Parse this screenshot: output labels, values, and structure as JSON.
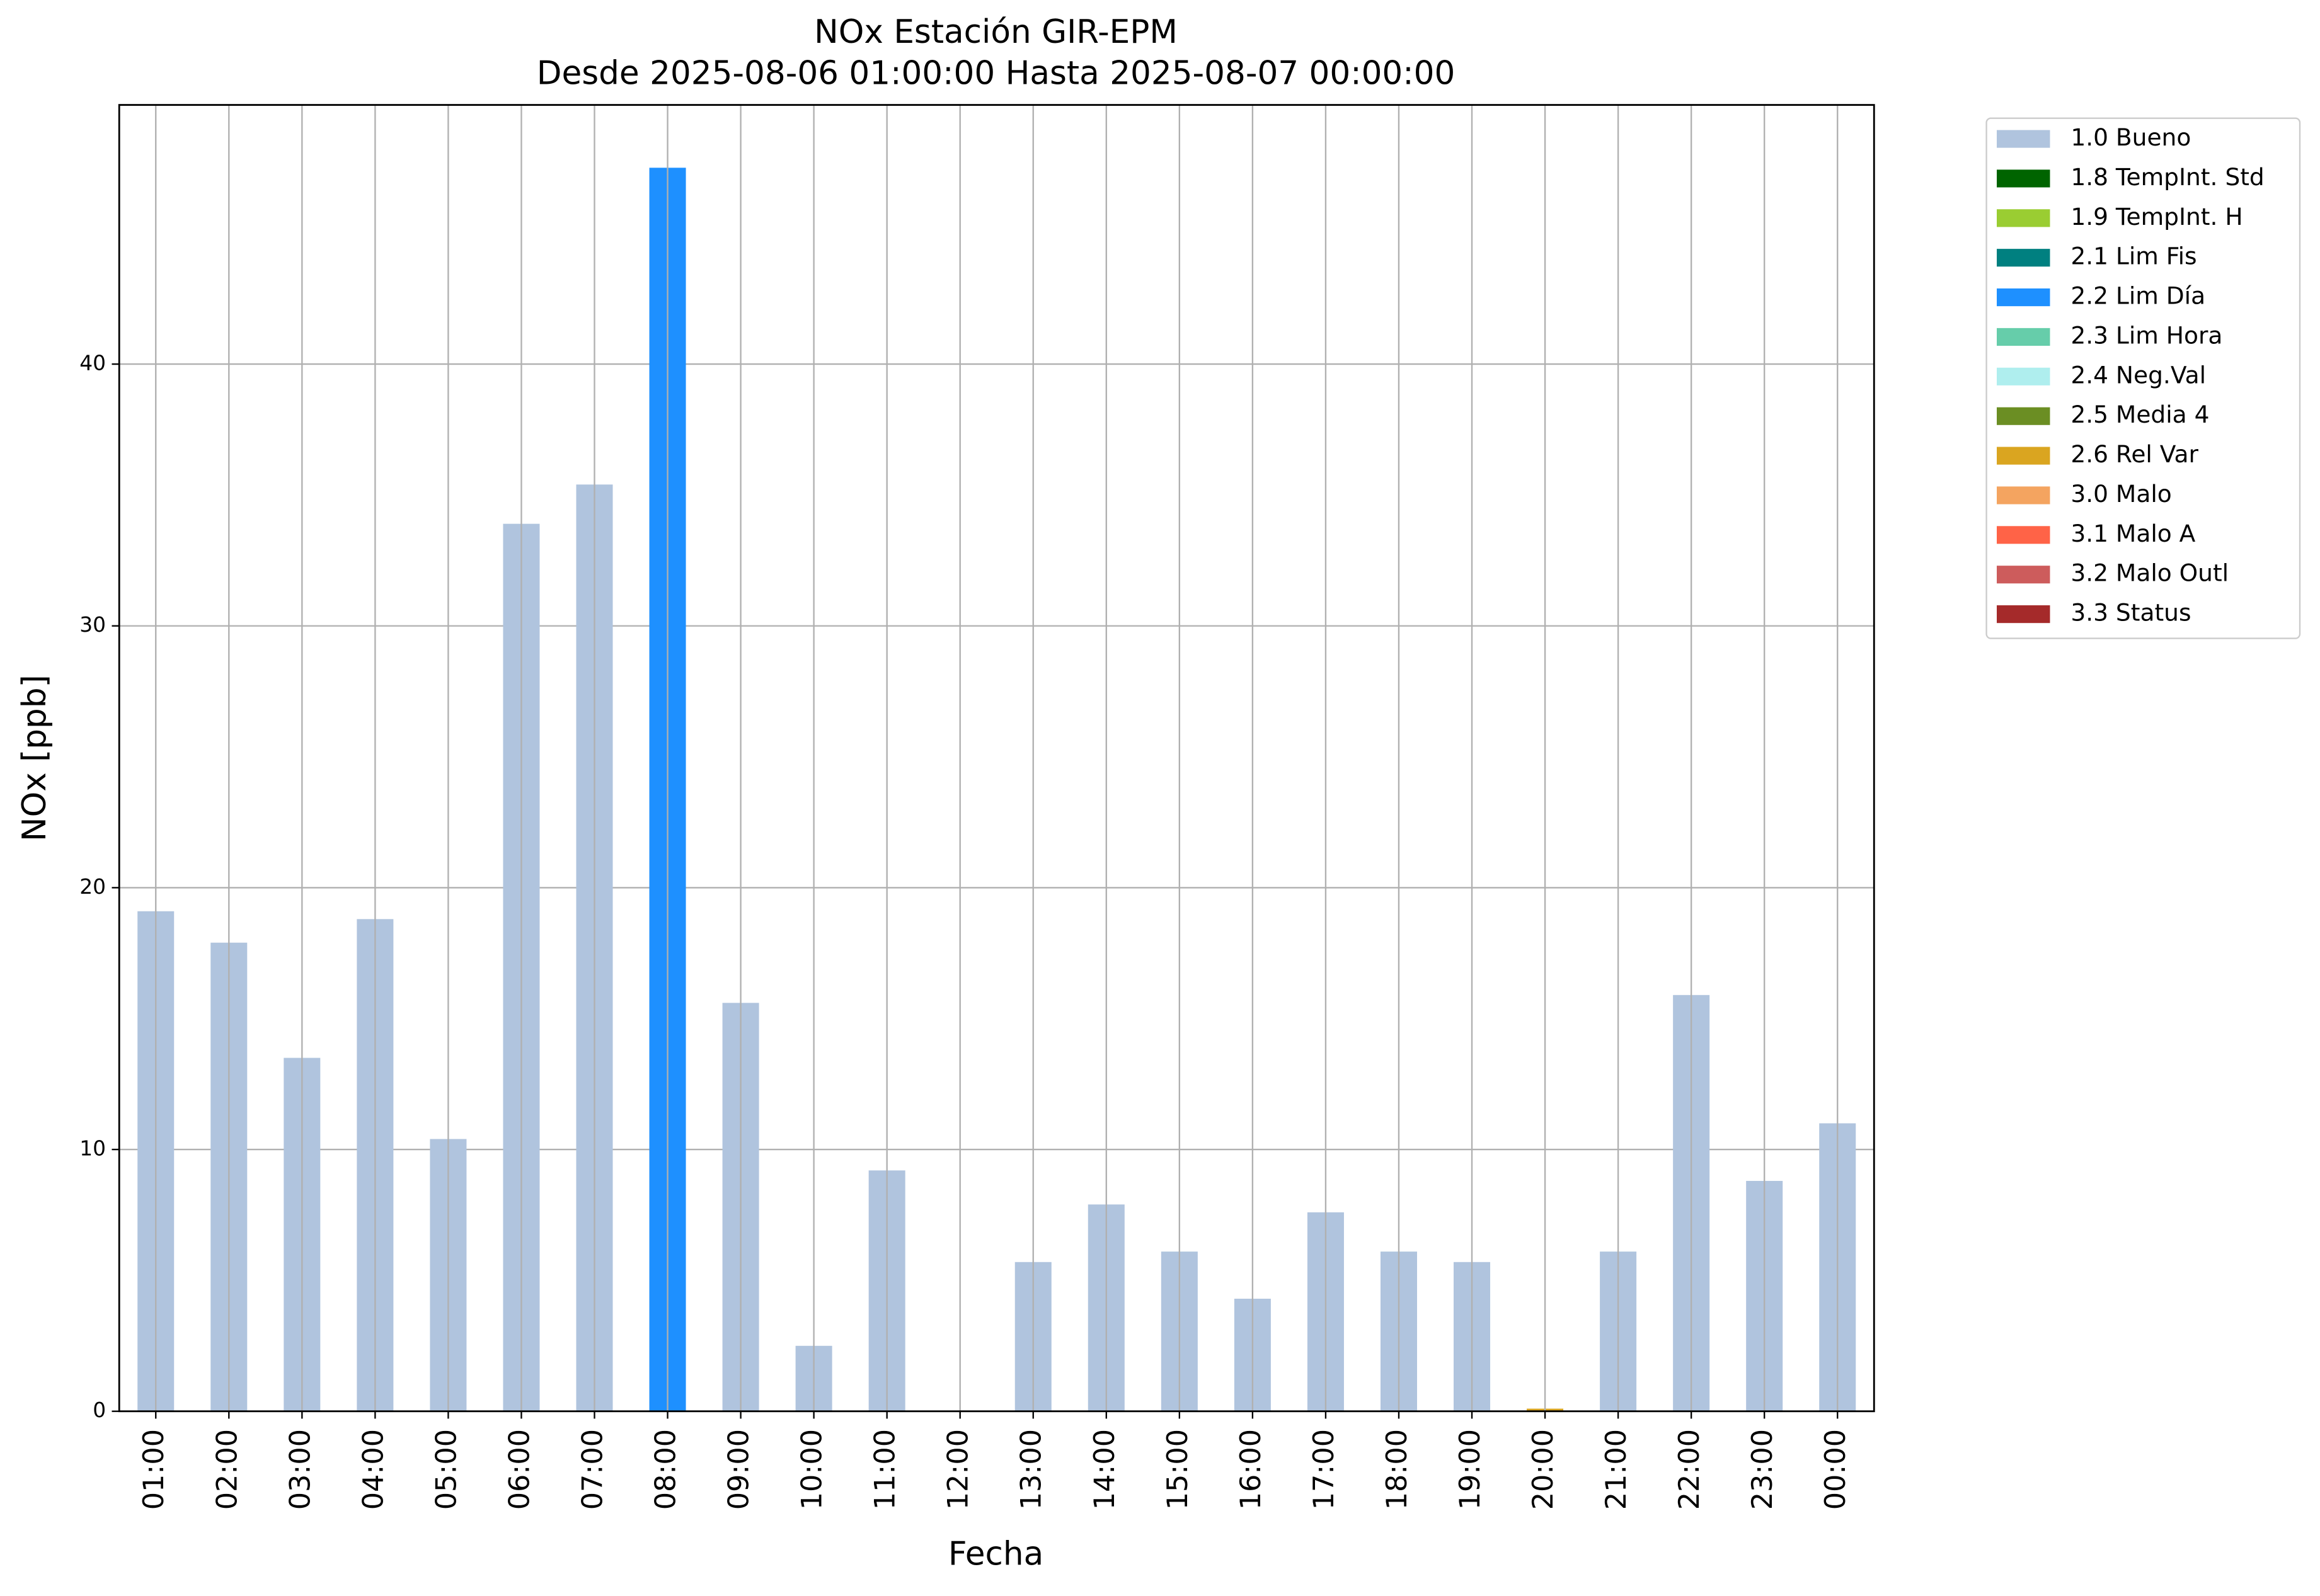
{
  "chart_data": {
    "type": "stacked_bar",
    "title": "NOx Estación GIR-EPM",
    "subtitle": "Desde 2025-08-06 01:00:00 Hasta 2025-08-07 00:00:00",
    "x_label": "Fecha",
    "y_label": "NOx [ppb]",
    "categories": [
      "01:00",
      "02:00",
      "03:00",
      "04:00",
      "05:00",
      "06:00",
      "07:00",
      "08:00",
      "09:00",
      "10:00",
      "11:00",
      "12:00",
      "13:00",
      "14:00",
      "15:00",
      "16:00",
      "17:00",
      "18:00",
      "19:00",
      "20:00",
      "21:00",
      "22:00",
      "23:00",
      "00:00"
    ],
    "series": [
      {
        "name": "1.0 Bueno",
        "color": "#b0c4de",
        "values": [
          19.1,
          17.9,
          13.5,
          18.8,
          10.4,
          33.9,
          35.4,
          0,
          15.6,
          2.5,
          9.2,
          0,
          5.7,
          7.9,
          6.1,
          4.3,
          7.6,
          6.1,
          5.7,
          0,
          6.1,
          15.9,
          8.8,
          11.0
        ]
      },
      {
        "name": "1.8 TempInt. Std",
        "color": "#006400",
        "values": [
          0,
          0,
          0,
          0,
          0,
          0,
          0,
          0,
          0,
          0,
          0,
          0,
          0,
          0,
          0,
          0,
          0,
          0,
          0,
          0,
          0,
          0,
          0,
          0
        ]
      },
      {
        "name": "1.9 TempInt. H",
        "color": "#9acd32",
        "values": [
          0,
          0,
          0,
          0,
          0,
          0,
          0,
          0,
          0,
          0,
          0,
          0,
          0,
          0,
          0,
          0,
          0,
          0,
          0,
          0,
          0,
          0,
          0,
          0
        ]
      },
      {
        "name": "2.1 Lim Fis",
        "color": "#008080",
        "values": [
          0,
          0,
          0,
          0,
          0,
          0,
          0,
          0,
          0,
          0,
          0,
          0,
          0,
          0,
          0,
          0,
          0,
          0,
          0,
          0,
          0,
          0,
          0,
          0
        ]
      },
      {
        "name": "2.2 Lim Día",
        "color": "#1e90ff",
        "values": [
          0,
          0,
          0,
          0,
          0,
          0,
          0,
          47.5,
          0,
          0,
          0,
          0,
          0,
          0,
          0,
          0,
          0,
          0,
          0,
          0,
          0,
          0,
          0,
          0
        ]
      },
      {
        "name": "2.3 Lim Hora",
        "color": "#66cdaa",
        "values": [
          0,
          0,
          0,
          0,
          0,
          0,
          0,
          0,
          0,
          0,
          0,
          0,
          0,
          0,
          0,
          0,
          0,
          0,
          0,
          0,
          0,
          0,
          0,
          0
        ]
      },
      {
        "name": "2.4 Neg.Val",
        "color": "#afeeee",
        "values": [
          0,
          0,
          0,
          0,
          0,
          0,
          0,
          0,
          0,
          0,
          0,
          0,
          0,
          0,
          0,
          0,
          0,
          0,
          0,
          0,
          0,
          0,
          0,
          0
        ]
      },
      {
        "name": "2.5 Media 4",
        "color": "#6b8e23",
        "values": [
          0,
          0,
          0,
          0,
          0,
          0,
          0,
          0,
          0,
          0,
          0,
          0,
          0,
          0,
          0,
          0,
          0,
          0,
          0,
          0,
          0,
          0,
          0,
          0
        ]
      },
      {
        "name": "2.6 Rel Var",
        "color": "#daa520",
        "values": [
          0,
          0,
          0,
          0,
          0,
          0,
          0,
          0,
          0,
          0,
          0,
          0,
          0,
          0,
          0,
          0,
          0,
          0,
          0,
          0.1,
          0,
          0,
          0,
          0
        ]
      },
      {
        "name": "3.0 Malo",
        "color": "#f4a460",
        "values": [
          0,
          0,
          0,
          0,
          0,
          0,
          0,
          0,
          0,
          0,
          0,
          0,
          0,
          0,
          0,
          0,
          0,
          0,
          0,
          0,
          0,
          0,
          0,
          0
        ]
      },
      {
        "name": "3.1 Malo A",
        "color": "#ff6347",
        "values": [
          0,
          0,
          0,
          0,
          0,
          0,
          0,
          0,
          0,
          0,
          0,
          0,
          0,
          0,
          0,
          0,
          0,
          0,
          0,
          0,
          0,
          0,
          0,
          0
        ]
      },
      {
        "name": "3.2 Malo Outl",
        "color": "#cd5c5c",
        "values": [
          0,
          0,
          0,
          0,
          0,
          0,
          0,
          0,
          0,
          0,
          0,
          0,
          0,
          0,
          0,
          0,
          0,
          0,
          0,
          0,
          0,
          0,
          0,
          0
        ]
      },
      {
        "name": "3.3 Status",
        "color": "#a52a2a",
        "values": [
          0,
          0,
          0,
          0,
          0,
          0,
          0,
          0,
          0,
          0,
          0,
          0,
          0,
          0,
          0,
          0,
          0,
          0,
          0,
          0,
          0,
          0,
          0,
          0
        ]
      }
    ],
    "ylim": [
      0,
      49.9
    ],
    "yticks": [
      0,
      10,
      20,
      30,
      40
    ],
    "grid": true,
    "legend": "outside upper right"
  }
}
